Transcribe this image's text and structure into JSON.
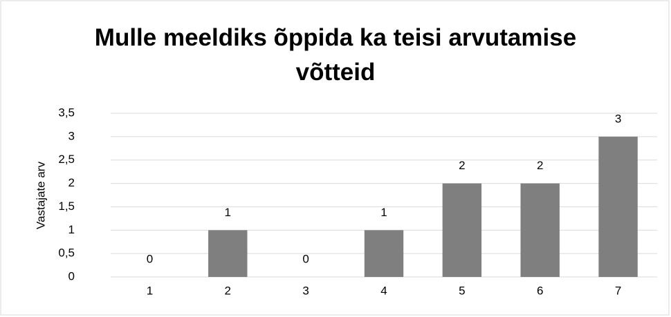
{
  "chart_data": {
    "type": "bar",
    "title": "Mulle meeldiks õppida ka teisi arvutamise võtteid",
    "y_label": "Vastajate arv",
    "categories": [
      "1",
      "2",
      "3",
      "4",
      "5",
      "6",
      "7"
    ],
    "values": [
      0,
      1,
      0,
      1,
      2,
      2,
      3
    ],
    "color": "#7f7f7f",
    "ylim": [
      0,
      3.5
    ],
    "yticks": [
      0,
      {
        "value": 0.5,
        "label": "0,5"
      },
      1,
      {
        "value": 1.5,
        "label": "1,5"
      },
      2,
      {
        "value": 2.5,
        "label": "2,5"
      },
      3,
      {
        "value": 3.5,
        "label": "3,5"
      }
    ],
    "grid": true
  }
}
